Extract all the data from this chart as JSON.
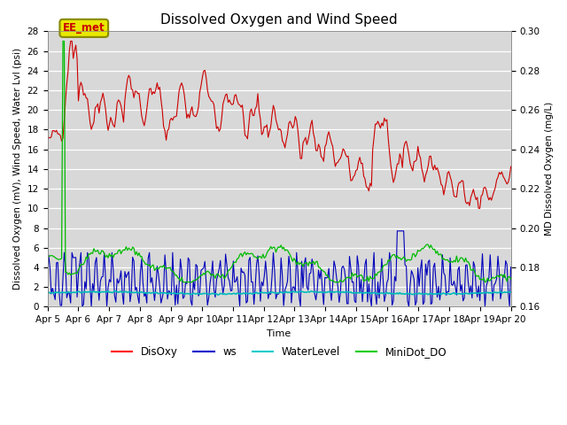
{
  "title": "Dissolved Oxygen and Wind Speed",
  "xlabel": "Time",
  "ylabel_left": "Dissolved Oxygen (mV), Wind Speed, Water Lvl (psi)",
  "ylabel_right": "MD Dissolved Oxygen (mg/L)",
  "annotation_text": "EE_met",
  "annotation_bg": "#e8e800",
  "annotation_text_color": "#cc0000",
  "annotation_edge": "#888800",
  "ylim_left": [
    0,
    28
  ],
  "ylim_right": [
    0.16,
    0.3
  ],
  "background_color": "#d8d8d8",
  "legend_labels": [
    "DisOxy",
    "ws",
    "WaterLevel",
    "MiniDot_DO"
  ],
  "legend_colors": [
    "#ff0000",
    "#0000cc",
    "#00cccc",
    "#00cc00"
  ],
  "disoxy_color": "#cc0000",
  "ws_color": "#0000bb",
  "waterlevel_color": "#00bbbb",
  "minidot_color": "#00bb00",
  "title_fontsize": 11,
  "axis_fontsize": 8,
  "tick_fontsize": 7.5
}
